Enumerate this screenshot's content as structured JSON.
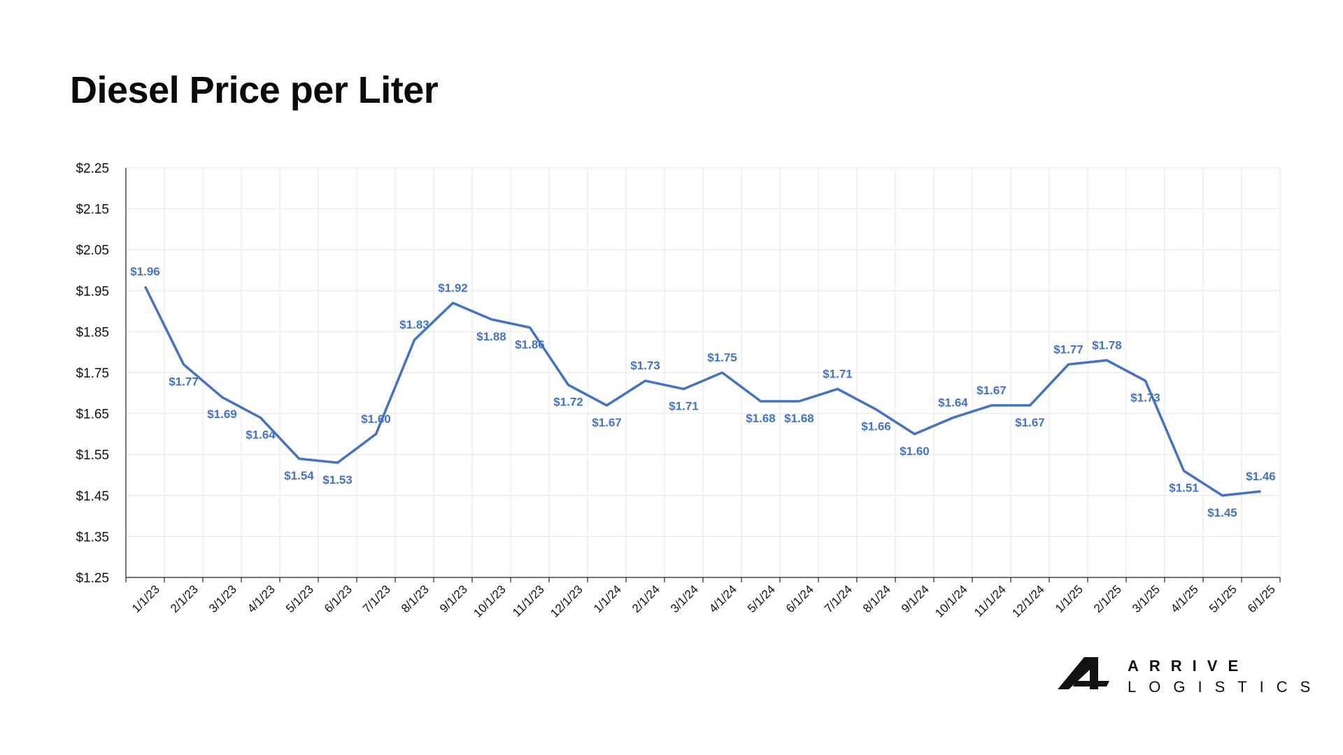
{
  "title": "Diesel Price per Liter",
  "brand": {
    "line1": "ARRIVE",
    "line2": "LOGISTICS"
  },
  "colors": {
    "series": "#4472c4",
    "grid": "#e6e6e6",
    "axis": "#222222"
  },
  "chart_data": {
    "type": "line",
    "title": "Diesel Price per Liter",
    "xlabel": "",
    "ylabel": "",
    "ylim": [
      1.25,
      2.25
    ],
    "yticks": [
      "$2.25",
      "$2.15",
      "$2.05",
      "$1.95",
      "$1.85",
      "$1.75",
      "$1.65",
      "$1.55",
      "$1.45",
      "$1.35",
      "$1.25"
    ],
    "categories": [
      "1/1/23",
      "2/1/23",
      "3/1/23",
      "4/1/23",
      "5/1/23",
      "6/1/23",
      "7/1/23",
      "8/1/23",
      "9/1/23",
      "10/1/23",
      "11/1/23",
      "12/1/23",
      "1/1/24",
      "2/1/24",
      "3/1/24",
      "4/1/24",
      "5/1/24",
      "6/1/24",
      "7/1/24",
      "8/1/24",
      "9/1/24",
      "10/1/24",
      "11/1/24",
      "12/1/24",
      "1/1/25",
      "2/1/25",
      "3/1/25",
      "4/1/25",
      "5/1/25",
      "6/1/25"
    ],
    "values": [
      1.96,
      1.77,
      1.69,
      1.64,
      1.54,
      1.53,
      1.6,
      1.83,
      1.92,
      1.88,
      1.86,
      1.72,
      1.67,
      1.73,
      1.71,
      1.75,
      1.68,
      1.68,
      1.71,
      1.66,
      1.6,
      1.64,
      1.67,
      1.67,
      1.77,
      1.78,
      1.73,
      1.51,
      1.45,
      1.46
    ],
    "data_labels": [
      "$1.96",
      "$1.77",
      "$1.69",
      "$1.64",
      "$1.54",
      "$1.53",
      "$1.60",
      "$1.83",
      "$1.92",
      "$1.88",
      "$1.86",
      "$1.72",
      "$1.67",
      "$1.73",
      "$1.71",
      "$1.75",
      "$1.68",
      "$1.68",
      "$1.71",
      "$1.66",
      "$1.60",
      "$1.64",
      "$1.67",
      "$1.67",
      "$1.77",
      "$1.78",
      "$1.73",
      "$1.51",
      "$1.45",
      "$1.46"
    ],
    "grid": true,
    "legend": "none"
  }
}
